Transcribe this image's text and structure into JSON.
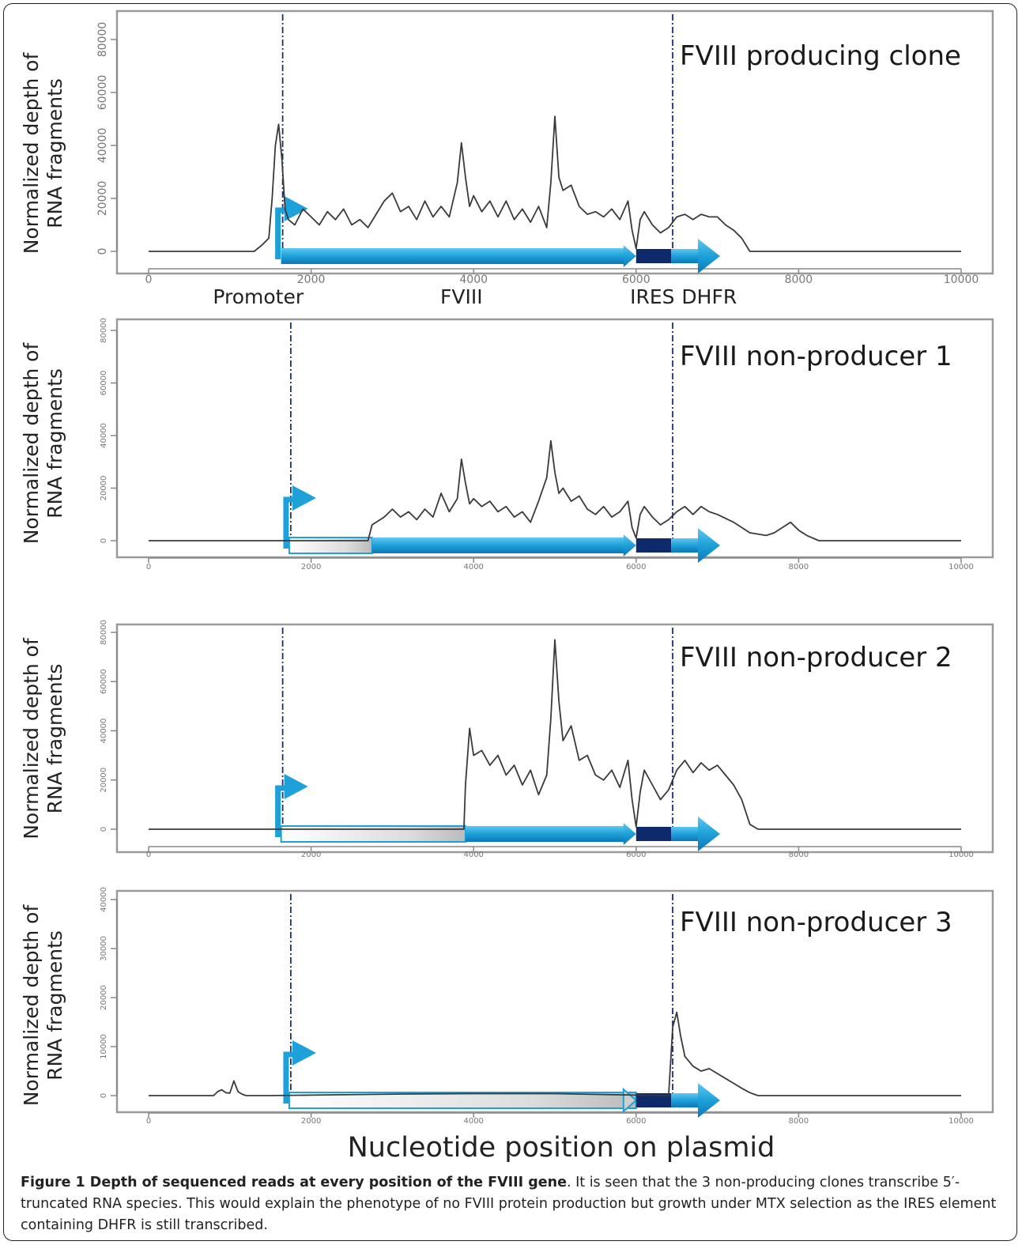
{
  "figure": {
    "xlabel": "Nucleotide position on plasmid",
    "caption_title": "Figure 1 Depth of sequenced reads at every position of the FVIII gene",
    "caption_text": ". It is seen that the 3 non-producing clones transcribe 5′-truncated RNA species. This would explain the phenotype of no FVIII protein production but growth under MTX selection as the IRES element containing DHFR is still transcribed."
  },
  "colors": {
    "trace": "#3a3a3a",
    "boundary_line": "#1a2f7a",
    "gene_arrow": "#1ea0d8",
    "ires": "#0f2a6b",
    "axis": "#888888",
    "truncated": "#d9d9d9"
  },
  "chart_data": [
    {
      "type": "line",
      "title": "FVIII producing clone",
      "ylabel": "Normalized depth of RNA fragments",
      "xlim": [
        0,
        10000
      ],
      "ylim": [
        0,
        80000
      ],
      "yticks": [
        0,
        20000,
        40000,
        60000,
        80000
      ],
      "xticks": [
        0,
        2000,
        4000,
        6000,
        8000,
        10000
      ],
      "ytick_labels": [
        "0",
        "20000",
        "40000",
        "60000",
        "80000"
      ],
      "xtick_labels": [
        "0",
        "2000",
        "4000",
        "6000",
        "8000",
        "10000"
      ],
      "boundaries": [
        1650,
        6450
      ],
      "gene_labels": [
        {
          "text": "Promoter",
          "x": 1350
        },
        {
          "text": "FVIII",
          "x": 3850
        },
        {
          "text": "IRES",
          "x": 6200
        },
        {
          "text": "DHFR",
          "x": 6900
        }
      ],
      "truncated_to": null,
      "x": [
        0,
        1300,
        1400,
        1480,
        1520,
        1560,
        1600,
        1640,
        1680,
        1720,
        1800,
        1900,
        2000,
        2100,
        2200,
        2300,
        2400,
        2500,
        2600,
        2700,
        2800,
        2900,
        3000,
        3100,
        3200,
        3300,
        3400,
        3500,
        3600,
        3700,
        3800,
        3850,
        3900,
        3950,
        4000,
        4100,
        4200,
        4300,
        4400,
        4500,
        4600,
        4700,
        4800,
        4900,
        4950,
        5000,
        5050,
        5100,
        5200,
        5300,
        5400,
        5500,
        5600,
        5700,
        5800,
        5900,
        5950,
        6000,
        6050,
        6100,
        6200,
        6300,
        6400,
        6500,
        6600,
        6700,
        6800,
        6900,
        7000,
        7100,
        7200,
        7300,
        7400,
        7500,
        10000
      ],
      "y": [
        0,
        0,
        2500,
        5000,
        20000,
        40000,
        48000,
        35000,
        16000,
        12000,
        10000,
        16000,
        13000,
        10000,
        15000,
        12000,
        16000,
        10000,
        12000,
        9000,
        14000,
        19000,
        22000,
        15000,
        17000,
        12000,
        19000,
        13000,
        17000,
        13000,
        26000,
        41000,
        28000,
        17000,
        21000,
        15000,
        19000,
        13000,
        19000,
        12000,
        16000,
        11000,
        17000,
        9000,
        26000,
        51000,
        28000,
        23000,
        25000,
        17000,
        14000,
        15000,
        13000,
        16000,
        12000,
        19000,
        8000,
        1000,
        12000,
        15000,
        10000,
        7000,
        9000,
        13000,
        14000,
        12000,
        14000,
        13000,
        13000,
        10000,
        8000,
        5000,
        0,
        0,
        0
      ]
    },
    {
      "type": "line",
      "title": "FVIII non-producer 1",
      "ylabel": "Normalized depth of RNA fragments",
      "xlim": [
        0,
        10000
      ],
      "ylim": [
        0,
        80000
      ],
      "yticks": [
        0,
        20000,
        40000,
        60000,
        80000
      ],
      "xticks": [
        0,
        2000,
        4000,
        6000,
        8000,
        10000
      ],
      "ytick_labels": [
        "0",
        "20000",
        "40000",
        "60000",
        "80000"
      ],
      "xtick_labels": [
        "0",
        "2000",
        "4000",
        "6000",
        "8000",
        "10000"
      ],
      "boundaries": [
        1750,
        6450
      ],
      "gene_labels": [],
      "truncated_to": 2750,
      "x": [
        0,
        2700,
        2750,
        2900,
        3000,
        3100,
        3200,
        3300,
        3400,
        3500,
        3600,
        3700,
        3800,
        3850,
        3900,
        3950,
        4000,
        4100,
        4200,
        4300,
        4400,
        4500,
        4600,
        4700,
        4800,
        4900,
        4950,
        5000,
        5050,
        5100,
        5200,
        5300,
        5400,
        5500,
        5600,
        5700,
        5800,
        5900,
        5950,
        6000,
        6050,
        6100,
        6200,
        6300,
        6400,
        6500,
        6600,
        6700,
        6800,
        6900,
        7000,
        7200,
        7400,
        7600,
        7700,
        7800,
        7900,
        8000,
        8100,
        8250,
        10000
      ],
      "y": [
        0,
        0,
        6000,
        9000,
        12000,
        9000,
        11000,
        8000,
        12000,
        9000,
        18000,
        11000,
        16000,
        31000,
        22000,
        14000,
        16000,
        13000,
        15000,
        11000,
        13000,
        9000,
        11000,
        7000,
        15000,
        24000,
        38000,
        26000,
        18000,
        20000,
        15000,
        17000,
        12000,
        10000,
        13000,
        9000,
        11000,
        15000,
        5000,
        1000,
        10000,
        13000,
        9000,
        6000,
        8000,
        11000,
        13000,
        10000,
        13000,
        11000,
        10000,
        7000,
        3000,
        2000,
        3000,
        5000,
        7000,
        4000,
        2000,
        0,
        0
      ]
    },
    {
      "type": "line",
      "title": "FVIII non-producer 2",
      "ylabel": "Normalized depth of RNA fragments",
      "xlim": [
        0,
        10000
      ],
      "ylim": [
        0,
        80000
      ],
      "yticks": [
        0,
        20000,
        40000,
        60000,
        80000
      ],
      "xticks": [
        0,
        2000,
        4000,
        6000,
        8000,
        10000
      ],
      "ytick_labels": [
        "0",
        "20000",
        "40000",
        "60000",
        "80000"
      ],
      "xtick_labels": [
        "0",
        "2000",
        "4000",
        "6000",
        "8000",
        "10000"
      ],
      "boundaries": [
        1650,
        6450
      ],
      "gene_labels": [],
      "truncated_to": 3900,
      "x": [
        0,
        3880,
        3900,
        3950,
        4000,
        4100,
        4200,
        4300,
        4400,
        4500,
        4600,
        4700,
        4800,
        4900,
        4950,
        5000,
        5050,
        5100,
        5200,
        5300,
        5400,
        5500,
        5600,
        5700,
        5800,
        5900,
        5950,
        6000,
        6050,
        6100,
        6200,
        6300,
        6400,
        6500,
        6600,
        6700,
        6800,
        6900,
        7000,
        7100,
        7200,
        7300,
        7400,
        7500,
        10000
      ],
      "y": [
        0,
        0,
        18000,
        41000,
        30000,
        32000,
        26000,
        30000,
        22000,
        26000,
        18000,
        24000,
        14000,
        22000,
        45000,
        77000,
        52000,
        36000,
        42000,
        28000,
        30000,
        22000,
        20000,
        24000,
        17000,
        28000,
        12000,
        1000,
        15000,
        24000,
        18000,
        12000,
        16000,
        24000,
        28000,
        23000,
        27000,
        24000,
        26000,
        22000,
        18000,
        12000,
        2000,
        0,
        0
      ]
    },
    {
      "type": "line",
      "title": "FVIII non-producer 3",
      "ylabel": "Normalized depth of RNA fragments",
      "xlim": [
        0,
        10000
      ],
      "ylim": [
        0,
        40000
      ],
      "yticks": [
        0,
        10000,
        20000,
        30000,
        40000
      ],
      "xticks": [
        0,
        2000,
        4000,
        6000,
        8000,
        10000
      ],
      "ytick_labels": [
        "0",
        "10000",
        "20000",
        "30000",
        "40000"
      ],
      "xtick_labels": [
        "0",
        "2000",
        "4000",
        "6000",
        "8000",
        "10000"
      ],
      "boundaries": [
        1750,
        6450
      ],
      "gene_labels": [],
      "truncated_to": 6000,
      "x": [
        0,
        800,
        850,
        900,
        950,
        1000,
        1050,
        1100,
        1150,
        1200,
        1300,
        1500,
        2000,
        3000,
        4000,
        5000,
        6000,
        6400,
        6450,
        6500,
        6550,
        6600,
        6700,
        6800,
        6900,
        7000,
        7100,
        7200,
        7300,
        7400,
        7500,
        10000
      ],
      "y": [
        0,
        0,
        800,
        1200,
        600,
        500,
        3000,
        800,
        300,
        0,
        0,
        0,
        100,
        300,
        400,
        400,
        100,
        0,
        14000,
        17000,
        12000,
        8000,
        6000,
        5000,
        5500,
        4500,
        3500,
        2500,
        1500,
        600,
        0,
        0
      ]
    }
  ]
}
